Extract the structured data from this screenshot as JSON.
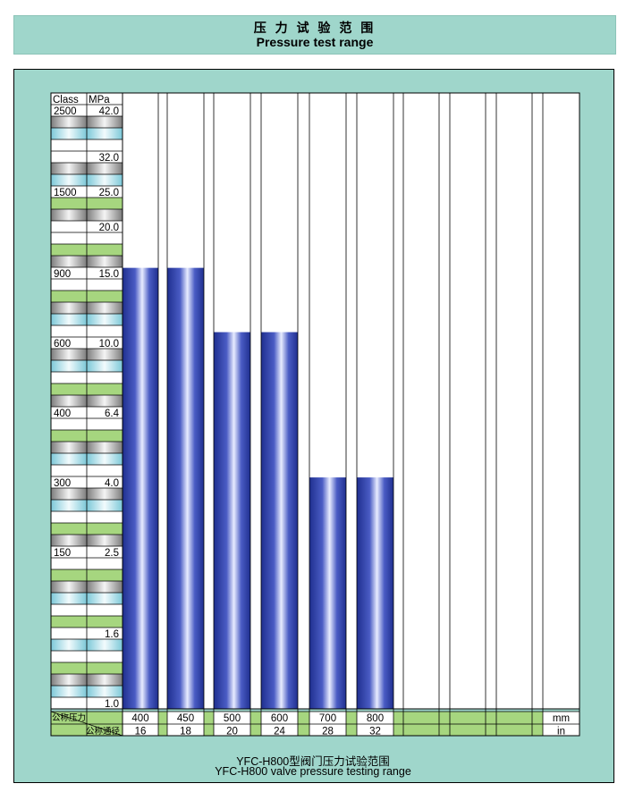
{
  "title": {
    "cn": "压 力 试 验 范 围",
    "en": "Pressure test range"
  },
  "caption": {
    "cn": "YFC-H800型阀门压力试验范围",
    "en": "YFC-H800 valve pressure testing range"
  },
  "colors": {
    "frame_bg": "#9fd6cb",
    "bar": "#2b3d9e",
    "green": "#a6d67f",
    "gray": "#a8a8a8",
    "blue": "#a9dde8"
  },
  "chart_data": {
    "type": "bar",
    "header": {
      "class": "Class",
      "mpa": "MPa"
    },
    "scale_rows": [
      {
        "class": "2500",
        "mpa": "42.0"
      },
      {
        "class": "",
        "mpa": "32.0"
      },
      {
        "class": "1500",
        "mpa": "25.0"
      },
      {
        "class": "",
        "mpa": "20.0"
      },
      {
        "class": "900",
        "mpa": "15.0"
      },
      {
        "class": "600",
        "mpa": "10.0"
      },
      {
        "class": "400",
        "mpa": "6.4"
      },
      {
        "class": "300",
        "mpa": "4.0"
      },
      {
        "class": "150",
        "mpa": "2.5"
      },
      {
        "class": "",
        "mpa": "1.6"
      },
      {
        "class": "",
        "mpa": "1.0"
      }
    ],
    "row_labels": {
      "pressure": "公称压力",
      "diameter": "公称通径"
    },
    "units": {
      "mm": "mm",
      "in": "in"
    },
    "categories_mm": [
      "400",
      "450",
      "500",
      "600",
      "700",
      "800",
      "",
      "",
      "",
      "",
      "",
      "",
      "",
      ""
    ],
    "categories_in": [
      "16",
      "18",
      "20",
      "24",
      "28",
      "32",
      "",
      "",
      "",
      "",
      "",
      "",
      "",
      ""
    ],
    "values_mpa": [
      15.0,
      15.0,
      10.0,
      10.0,
      4.0,
      4.0
    ]
  }
}
